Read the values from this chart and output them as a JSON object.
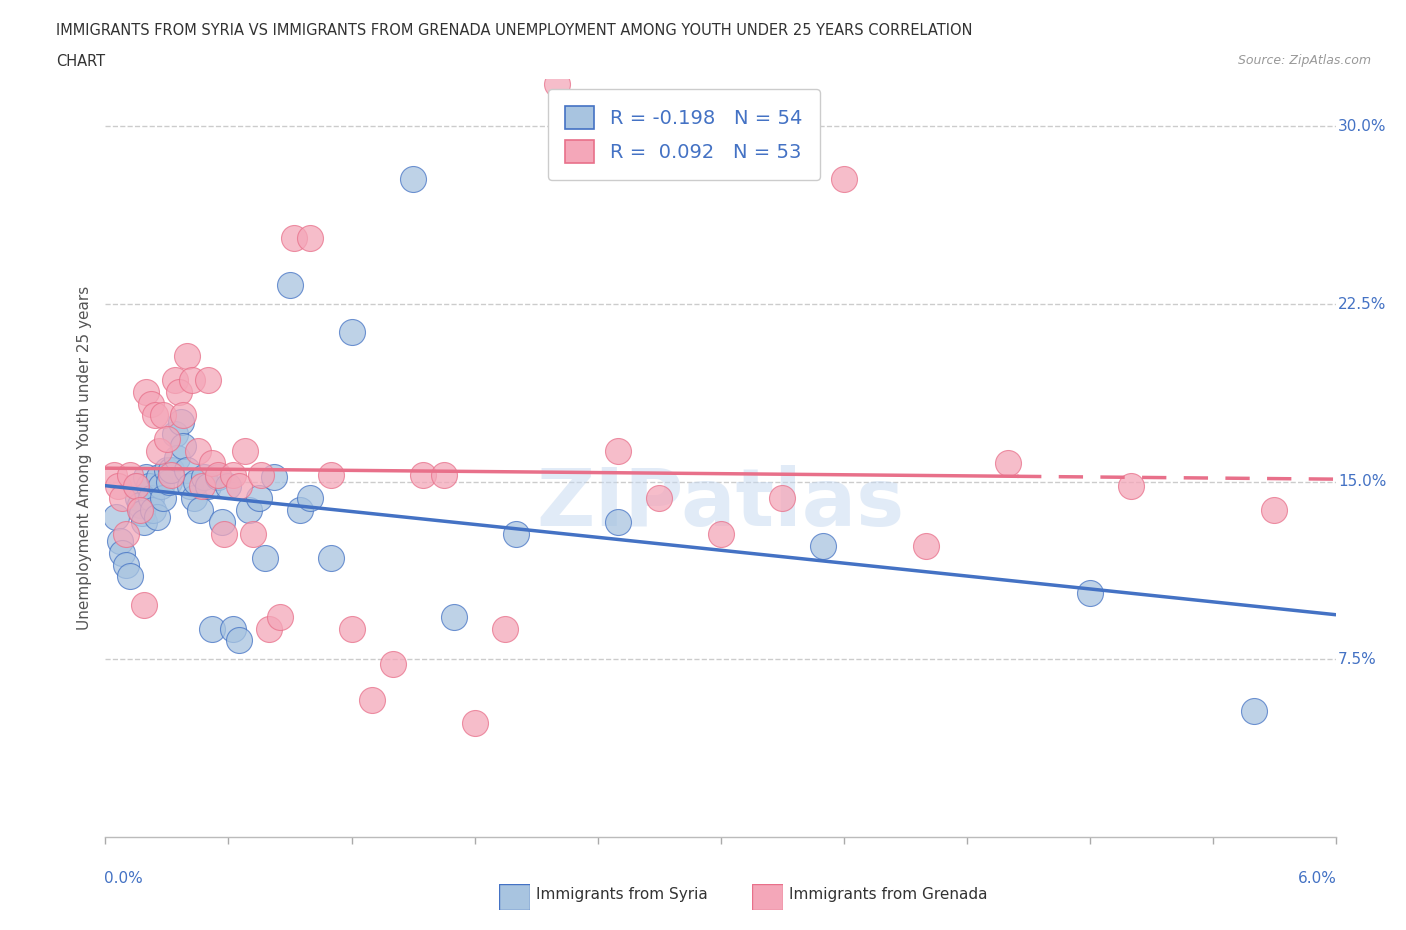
{
  "title_line1": "IMMIGRANTS FROM SYRIA VS IMMIGRANTS FROM GRENADA UNEMPLOYMENT AMONG YOUTH UNDER 25 YEARS CORRELATION",
  "title_line2": "CHART",
  "source": "Source: ZipAtlas.com",
  "ylabel": "Unemployment Among Youth under 25 years",
  "yticks": [
    0.0,
    0.075,
    0.15,
    0.225,
    0.3
  ],
  "ytick_labels": [
    "",
    "7.5%",
    "15.0%",
    "22.5%",
    "30.0%"
  ],
  "legend_label1": "Immigrants from Syria",
  "legend_label2": "Immigrants from Grenada",
  "R1": -0.198,
  "N1": 54,
  "R2": 0.092,
  "N2": 53,
  "color_syria": "#a8c4e0",
  "color_grenada": "#f4a7b9",
  "color_syria_line": "#4472c4",
  "color_grenada_line": "#e8708a",
  "watermark": "ZIPatlas",
  "syria_x": [
    0.0005,
    0.0007,
    0.0008,
    0.001,
    0.0012,
    0.0015,
    0.0016,
    0.0017,
    0.0018,
    0.0019,
    0.002,
    0.0021,
    0.0022,
    0.0023,
    0.0025,
    0.0026,
    0.0027,
    0.0028,
    0.003,
    0.0031,
    0.0032,
    0.0034,
    0.0035,
    0.0037,
    0.0038,
    0.004,
    0.0041,
    0.0043,
    0.0044,
    0.0046,
    0.0048,
    0.005,
    0.0052,
    0.0055,
    0.0057,
    0.006,
    0.0062,
    0.0065,
    0.007,
    0.0075,
    0.0078,
    0.0082,
    0.009,
    0.0095,
    0.01,
    0.011,
    0.012,
    0.015,
    0.017,
    0.02,
    0.025,
    0.035,
    0.048,
    0.056
  ],
  "syria_y": [
    0.135,
    0.125,
    0.12,
    0.115,
    0.11,
    0.148,
    0.143,
    0.14,
    0.137,
    0.133,
    0.152,
    0.148,
    0.143,
    0.138,
    0.135,
    0.152,
    0.148,
    0.143,
    0.155,
    0.15,
    0.155,
    0.17,
    0.16,
    0.175,
    0.165,
    0.155,
    0.148,
    0.143,
    0.15,
    0.138,
    0.152,
    0.148,
    0.088,
    0.152,
    0.133,
    0.148,
    0.088,
    0.083,
    0.138,
    0.143,
    0.118,
    0.152,
    0.233,
    0.138,
    0.143,
    0.118,
    0.213,
    0.278,
    0.093,
    0.128,
    0.133,
    0.123,
    0.103,
    0.053
  ],
  "grenada_x": [
    0.0004,
    0.0006,
    0.0008,
    0.001,
    0.0012,
    0.0015,
    0.0017,
    0.0019,
    0.002,
    0.0022,
    0.0024,
    0.0026,
    0.0028,
    0.003,
    0.0032,
    0.0034,
    0.0036,
    0.0038,
    0.004,
    0.0042,
    0.0045,
    0.0047,
    0.005,
    0.0052,
    0.0055,
    0.0058,
    0.0062,
    0.0065,
    0.0068,
    0.0072,
    0.0076,
    0.008,
    0.0085,
    0.0092,
    0.01,
    0.011,
    0.012,
    0.013,
    0.014,
    0.0155,
    0.0165,
    0.018,
    0.0195,
    0.022,
    0.025,
    0.027,
    0.03,
    0.033,
    0.036,
    0.04,
    0.044,
    0.05,
    0.057
  ],
  "grenada_y": [
    0.153,
    0.148,
    0.143,
    0.128,
    0.153,
    0.148,
    0.138,
    0.098,
    0.188,
    0.183,
    0.178,
    0.163,
    0.178,
    0.168,
    0.153,
    0.193,
    0.188,
    0.178,
    0.203,
    0.193,
    0.163,
    0.148,
    0.193,
    0.158,
    0.153,
    0.128,
    0.153,
    0.148,
    0.163,
    0.128,
    0.153,
    0.088,
    0.093,
    0.253,
    0.253,
    0.153,
    0.088,
    0.058,
    0.073,
    0.153,
    0.153,
    0.048,
    0.088,
    0.318,
    0.163,
    0.143,
    0.128,
    0.143,
    0.278,
    0.123,
    0.158,
    0.148,
    0.138
  ],
  "xmin": 0.0,
  "xmax": 0.06,
  "ymin": 0.0,
  "ymax": 0.32,
  "xtick_positions": [
    0.0,
    0.006,
    0.012,
    0.018,
    0.024,
    0.03,
    0.036,
    0.042,
    0.048,
    0.054,
    0.06
  ]
}
